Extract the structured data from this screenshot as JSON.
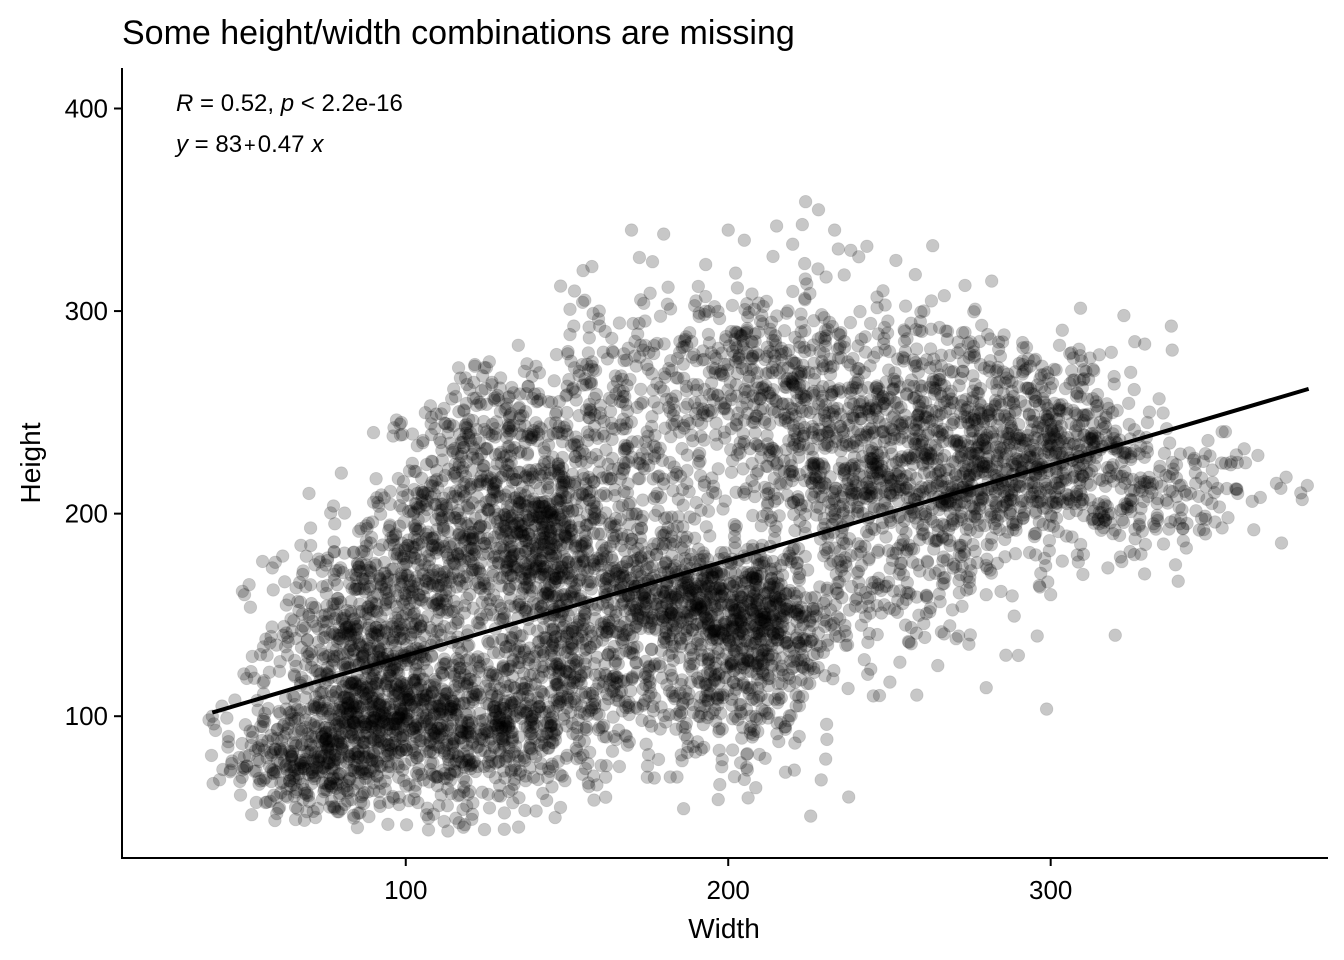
{
  "chart_data": {
    "type": "scatter",
    "title": "Some height/width combinations are missing",
    "xlabel": "Width",
    "ylabel": "Height",
    "xlim": [
      12,
      386
    ],
    "ylim": [
      30,
      420
    ],
    "xticks": [
      100,
      200,
      300
    ],
    "yticks": [
      100,
      200,
      300,
      400
    ],
    "grid": false,
    "point_color": "#000000",
    "point_alpha": 0.22,
    "annotations": {
      "stat_line": {
        "r_symbol": "R",
        "r_rest": " = 0.52, ",
        "p_symbol": "p",
        "p_rest": " < 2.2e-16"
      },
      "eq_line": {
        "y_symbol": "y",
        "eq_mid": " = 83",
        "plus": "+",
        "slope": "0.47",
        "x_symbol": "x"
      }
    },
    "regression": {
      "intercept": 83,
      "slope": 0.47,
      "x_range": [
        40,
        380
      ]
    },
    "sampled_points": [
      [
        40,
        100
      ],
      [
        41,
        93
      ],
      [
        43,
        105
      ],
      [
        45,
        90
      ],
      [
        47,
        108
      ],
      [
        50,
        80
      ],
      [
        50,
        160
      ],
      [
        52,
        122
      ],
      [
        55,
        95
      ],
      [
        57,
        130
      ],
      [
        60,
        60
      ],
      [
        62,
        140
      ],
      [
        65,
        110
      ],
      [
        68,
        170
      ],
      [
        70,
        232
      ],
      [
        70,
        210
      ],
      [
        72,
        50
      ],
      [
        75,
        150
      ],
      [
        78,
        195
      ],
      [
        80,
        220
      ],
      [
        83,
        90
      ],
      [
        85,
        45
      ],
      [
        88,
        172
      ],
      [
        90,
        240
      ],
      [
        92,
        255
      ],
      [
        95,
        120
      ],
      [
        98,
        60
      ],
      [
        100,
        175
      ],
      [
        103,
        205
      ],
      [
        105,
        262
      ],
      [
        108,
        130
      ],
      [
        110,
        85
      ],
      [
        113,
        280
      ],
      [
        115,
        185
      ],
      [
        118,
        65
      ],
      [
        120,
        240
      ],
      [
        122,
        322
      ],
      [
        125,
        272
      ],
      [
        127,
        150
      ],
      [
        130,
        325
      ],
      [
        132,
        95
      ],
      [
        135,
        230
      ],
      [
        137,
        300
      ],
      [
        140,
        315
      ],
      [
        142,
        185
      ],
      [
        145,
        200
      ],
      [
        148,
        55
      ],
      [
        150,
        345
      ],
      [
        152,
        262
      ],
      [
        155,
        320
      ],
      [
        158,
        110
      ],
      [
        160,
        300
      ],
      [
        162,
        60
      ],
      [
        165,
        268
      ],
      [
        168,
        140
      ],
      [
        170,
        340
      ],
      [
        172,
        178
      ],
      [
        175,
        348
      ],
      [
        178,
        210
      ],
      [
        180,
        338
      ],
      [
        182,
        70
      ],
      [
        185,
        285
      ],
      [
        188,
        162
      ],
      [
        190,
        305
      ],
      [
        193,
        323
      ],
      [
        195,
        250
      ],
      [
        198,
        75
      ],
      [
        200,
        340
      ],
      [
        202,
        278
      ],
      [
        205,
        335
      ],
      [
        207,
        100
      ],
      [
        210,
        295
      ],
      [
        212,
        200
      ],
      [
        215,
        342
      ],
      [
        218,
        155
      ],
      [
        220,
        333
      ],
      [
        222,
        90
      ],
      [
        224,
        354
      ],
      [
        226,
        240
      ],
      [
        228,
        350
      ],
      [
        230,
        120
      ],
      [
        233,
        340
      ],
      [
        235,
        260
      ],
      [
        238,
        330
      ],
      [
        240,
        180
      ],
      [
        243,
        332
      ],
      [
        245,
        110
      ],
      [
        248,
        310
      ],
      [
        250,
        280
      ],
      [
        252,
        325
      ],
      [
        255,
        145
      ],
      [
        258,
        318
      ],
      [
        260,
        230
      ],
      [
        263,
        305
      ],
      [
        265,
        125
      ],
      [
        268,
        290
      ],
      [
        270,
        245
      ],
      [
        273,
        275
      ],
      [
        275,
        175
      ],
      [
        278,
        285
      ],
      [
        280,
        160
      ],
      [
        283,
        270
      ],
      [
        285,
        215
      ],
      [
        288,
        265
      ],
      [
        290,
        130
      ],
      [
        293,
        262
      ],
      [
        295,
        190
      ],
      [
        298,
        255
      ],
      [
        300,
        160
      ],
      [
        303,
        240
      ],
      [
        305,
        205
      ],
      [
        308,
        258
      ],
      [
        310,
        170
      ],
      [
        313,
        232
      ],
      [
        315,
        195
      ],
      [
        318,
        252
      ],
      [
        320,
        140
      ],
      [
        323,
        215
      ],
      [
        325,
        228
      ],
      [
        328,
        180
      ],
      [
        330,
        245
      ],
      [
        333,
        205
      ],
      [
        335,
        185
      ],
      [
        338,
        222
      ],
      [
        340,
        195
      ],
      [
        343,
        230
      ],
      [
        345,
        215
      ],
      [
        348,
        190
      ],
      [
        350,
        205
      ],
      [
        353,
        225
      ],
      [
        355,
        198
      ],
      [
        358,
        210
      ],
      [
        360,
        232
      ],
      [
        363,
        192
      ],
      [
        365,
        208
      ],
      [
        370,
        215
      ],
      [
        373,
        218
      ],
      [
        378,
        207
      ]
    ],
    "density_clusters": [
      {
        "cx": 75,
        "cy": 80,
        "sx": 14,
        "sy": 16,
        "n": 500
      },
      {
        "cx": 85,
        "cy": 140,
        "sx": 14,
        "sy": 22,
        "n": 420
      },
      {
        "cx": 105,
        "cy": 180,
        "sx": 12,
        "sy": 18,
        "n": 260
      },
      {
        "cx": 120,
        "cy": 95,
        "sx": 16,
        "sy": 22,
        "n": 560
      },
      {
        "cx": 125,
        "cy": 230,
        "sx": 14,
        "sy": 25,
        "n": 350
      },
      {
        "cx": 140,
        "cy": 185,
        "sx": 14,
        "sy": 20,
        "n": 480
      },
      {
        "cx": 150,
        "cy": 120,
        "sx": 16,
        "sy": 25,
        "n": 460
      },
      {
        "cx": 160,
        "cy": 250,
        "sx": 14,
        "sy": 30,
        "n": 220
      },
      {
        "cx": 185,
        "cy": 155,
        "sx": 16,
        "sy": 16,
        "n": 460
      },
      {
        "cx": 210,
        "cy": 145,
        "sx": 13,
        "sy": 18,
        "n": 420
      },
      {
        "cx": 200,
        "cy": 110,
        "sx": 16,
        "sy": 20,
        "n": 240
      },
      {
        "cx": 210,
        "cy": 270,
        "sx": 18,
        "sy": 22,
        "n": 400
      },
      {
        "cx": 235,
        "cy": 225,
        "sx": 18,
        "sy": 25,
        "n": 360
      },
      {
        "cx": 260,
        "cy": 250,
        "sx": 18,
        "sy": 28,
        "n": 380
      },
      {
        "cx": 280,
        "cy": 215,
        "sx": 16,
        "sy": 22,
        "n": 340
      },
      {
        "cx": 300,
        "cy": 250,
        "sx": 16,
        "sy": 20,
        "n": 220
      },
      {
        "cx": 310,
        "cy": 215,
        "sx": 15,
        "sy": 20,
        "n": 260
      },
      {
        "cx": 340,
        "cy": 215,
        "sx": 12,
        "sy": 14,
        "n": 100
      },
      {
        "cx": 250,
        "cy": 175,
        "sx": 18,
        "sy": 25,
        "n": 260
      },
      {
        "cx": 170,
        "cy": 200,
        "sx": 20,
        "sy": 30,
        "n": 260
      },
      {
        "cx": 95,
        "cy": 110,
        "sx": 12,
        "sy": 18,
        "n": 300
      }
    ]
  }
}
